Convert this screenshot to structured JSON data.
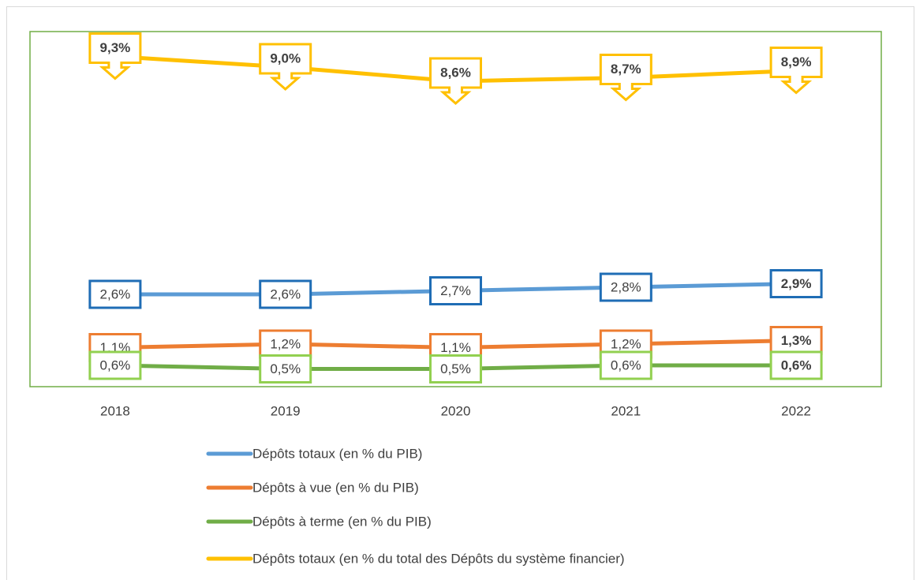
{
  "chart_data": {
    "type": "line",
    "categories": [
      "2018",
      "2019",
      "2020",
      "2021",
      "2022"
    ],
    "ylim": [
      0,
      10
    ],
    "grid": false,
    "series": [
      {
        "name": "Dépôts totaux  (en % du PIB)",
        "color": "#5b9bd5",
        "label_color": "#1f6db5",
        "values": [
          2.6,
          2.6,
          2.7,
          2.8,
          2.9
        ],
        "value_labels": [
          "2,6%",
          "2,6%",
          "2,7%",
          "2,8%",
          "2,9%"
        ]
      },
      {
        "name": "Dépôts à vue (en % du PIB)",
        "color": "#ed7d31",
        "label_color": "#ed7d31",
        "values": [
          1.1,
          1.2,
          1.1,
          1.2,
          1.3
        ],
        "value_labels": [
          "1,1%",
          "1,2%",
          "1,1%",
          "1,2%",
          "1,3%"
        ]
      },
      {
        "name": "Dépôts à terme (en % du PIB)",
        "color": "#70ad47",
        "label_color": "#92d050",
        "values": [
          0.6,
          0.5,
          0.5,
          0.6,
          0.6
        ],
        "value_labels": [
          "0,6%",
          "0,5%",
          "0,5%",
          "0,6%",
          "0,6%"
        ]
      },
      {
        "name": "Dépôts totaux (en % du total des Dépôts du système financier)",
        "color": "#ffc000",
        "label_color": "#ffc000",
        "values": [
          9.3,
          9.0,
          8.6,
          8.7,
          8.9
        ],
        "value_labels": [
          "9,3%",
          "9,0%",
          "8,6%",
          "8,7%",
          "8,9%"
        ],
        "callout": true
      }
    ]
  }
}
